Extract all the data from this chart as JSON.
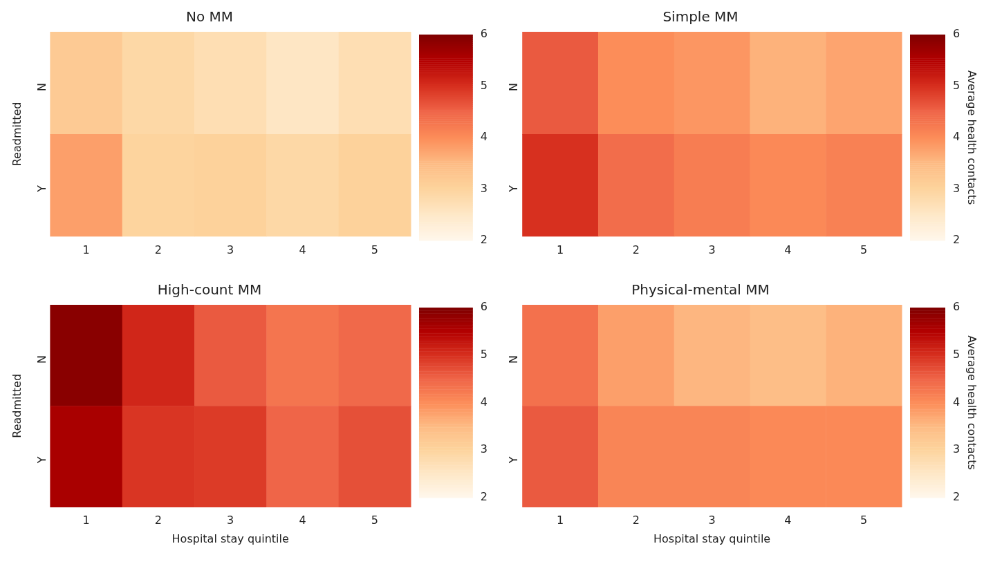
{
  "chart_data": [
    {
      "type": "heatmap",
      "title": "No MM",
      "ylabel": "Readmitted",
      "categories": [
        "1",
        "2",
        "3",
        "4",
        "5"
      ],
      "y_categories": [
        "N",
        "Y"
      ],
      "cells": [
        [
          3.2,
          2.9,
          2.75,
          2.55,
          2.75
        ],
        [
          3.8,
          3.0,
          3.05,
          2.9,
          3.05
        ]
      ],
      "clim": [
        2,
        6
      ],
      "cticks": [
        2,
        3,
        4,
        5,
        6
      ]
    },
    {
      "type": "heatmap",
      "title": "Simple MM",
      "clabel": "Average health contacts",
      "categories": [
        "1",
        "2",
        "3",
        "4",
        "5"
      ],
      "y_categories": [
        "N",
        "Y"
      ],
      "cells": [
        [
          4.6,
          4.0,
          3.9,
          3.6,
          3.75
        ],
        [
          5.0,
          4.4,
          4.2,
          4.05,
          4.15
        ]
      ],
      "clim": [
        2,
        6
      ],
      "cticks": [
        2,
        3,
        4,
        5,
        6
      ]
    },
    {
      "type": "heatmap",
      "title": "High-count MM",
      "xlabel": "Hospital stay quintile",
      "ylabel": "Readmitted",
      "categories": [
        "1",
        "2",
        "3",
        "4",
        "5"
      ],
      "y_categories": [
        "N",
        "Y"
      ],
      "cells": [
        [
          5.9,
          5.1,
          4.6,
          4.3,
          4.45
        ],
        [
          5.6,
          4.95,
          4.9,
          4.5,
          4.7
        ]
      ],
      "clim": [
        2,
        6
      ],
      "cticks": [
        2,
        3,
        4,
        5,
        6
      ]
    },
    {
      "type": "heatmap",
      "title": "Physical-mental MM",
      "xlabel": "Hospital stay quintile",
      "clabel": "Average health contacts",
      "categories": [
        "1",
        "2",
        "3",
        "4",
        "5"
      ],
      "y_categories": [
        "N",
        "Y"
      ],
      "cells": [
        [
          4.35,
          3.8,
          3.55,
          3.45,
          3.6
        ],
        [
          4.6,
          4.1,
          4.1,
          4.05,
          4.05
        ]
      ],
      "clim": [
        2,
        6
      ],
      "cticks": [
        2,
        3,
        4,
        5,
        6
      ]
    }
  ]
}
